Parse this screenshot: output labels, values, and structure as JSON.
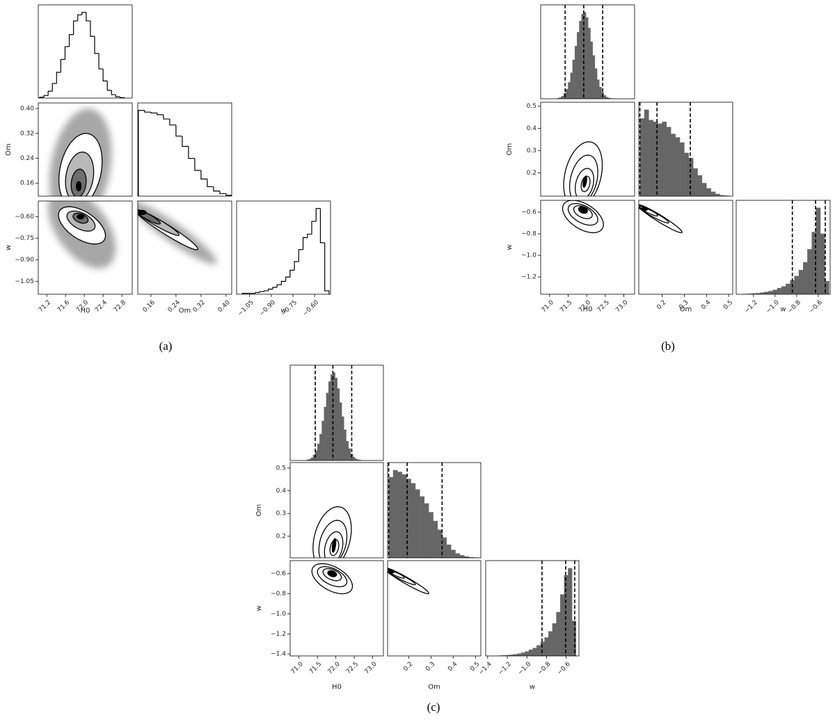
{
  "chart_data": [
    {
      "type": "corner",
      "caption": "(a)",
      "hist_style": "step",
      "hist_color": "#000000",
      "cloud_color": "#8a8a8a",
      "params": [
        {
          "label": "H0",
          "lim": [
            71.02,
            73.02
          ],
          "ticks": [
            71.2,
            71.6,
            {
              "value": 72,
              "label": "72.0"
            },
            72.4,
            72.8
          ]
        },
        {
          "label": "Om",
          "lim": [
            0.118,
            0.418
          ],
          "ticks": [
            0.16,
            0.24,
            0.32,
            {
              "value": 0.4,
              "label": "0.40"
            }
          ]
        },
        {
          "label": "w",
          "lim": [
            -1.14,
            -0.49
          ],
          "ticks": [
            {
              "value": -1.05,
              "label": "−1.05"
            },
            {
              "value": -0.9,
              "label": "−0.90"
            },
            {
              "value": -0.75,
              "label": "−0.75"
            },
            {
              "value": -0.6,
              "label": "−0.60"
            }
          ]
        }
      ],
      "histograms": [
        {
          "bins": [
            71.05,
            71.14,
            71.23,
            71.32,
            71.41,
            71.5,
            71.59,
            71.68,
            71.77,
            71.86,
            71.95,
            72.04,
            72.13,
            72.22,
            72.31,
            72.4,
            72.49,
            72.58,
            72.67,
            72.76,
            72.85
          ],
          "values": [
            1,
            3,
            8,
            17,
            30,
            45,
            60,
            74,
            90,
            97,
            100,
            90,
            72,
            52,
            34,
            20,
            9,
            4,
            1.5,
            0.5
          ]
        },
        {
          "bins": [
            0.12,
            0.14,
            0.16,
            0.18,
            0.2,
            0.22,
            0.24,
            0.26,
            0.28,
            0.3,
            0.32,
            0.34,
            0.36,
            0.38,
            0.4,
            0.42
          ],
          "values": [
            100,
            98,
            97,
            95,
            90,
            83,
            70,
            58,
            44,
            30,
            20,
            11,
            6,
            3,
            1
          ]
        },
        {
          "bins": [
            -1.1,
            -1.07,
            -1.04,
            -1.01,
            -0.98,
            -0.95,
            -0.92,
            -0.89,
            -0.86,
            -0.83,
            -0.8,
            -0.77,
            -0.74,
            -0.71,
            -0.68,
            -0.65,
            -0.62,
            -0.59,
            -0.56,
            -0.53,
            -0.5
          ],
          "values": [
            1,
            1,
            1,
            2,
            3,
            4,
            6,
            8,
            11,
            15,
            20,
            28,
            38,
            52,
            66,
            70,
            85,
            100,
            60,
            4
          ]
        }
      ],
      "clouds": [
        {
          "cx": 71.92,
          "cy": 0.21,
          "sx": 0.66,
          "sy": 0.19,
          "rho": 0.25
        },
        {
          "cx": 71.95,
          "cy": -0.68,
          "sx": 0.72,
          "sy": 0.28,
          "rho": -0.5
        },
        {
          "cx": 0.23,
          "cy": -0.71,
          "sx": 0.14,
          "sy": 0.22,
          "rho": -0.93
        }
      ],
      "contours": [
        [
          {
            "cx": 71.92,
            "cy": 0.2,
            "sx": 0.46,
            "sy": 0.12,
            "rho": 0.25,
            "fill": "#ffffff"
          },
          {
            "cx": 71.9,
            "cy": 0.18,
            "sx": 0.3,
            "sy": 0.08,
            "rho": 0.2,
            "fill": "#b8b8b8"
          },
          {
            "cx": 71.88,
            "cy": 0.16,
            "sx": 0.16,
            "sy": 0.045,
            "rho": 0.15,
            "fill": "#6e6e6e"
          },
          {
            "cx": 71.88,
            "cy": 0.15,
            "sx": 0.05,
            "sy": 0.015,
            "rho": 0,
            "fill": "#000000"
          }
        ],
        [
          {
            "cx": 71.95,
            "cy": -0.66,
            "sx": 0.5,
            "sy": 0.13,
            "rho": -0.55,
            "fill": "#ffffff"
          },
          {
            "cx": 71.93,
            "cy": -0.63,
            "sx": 0.3,
            "sy": 0.07,
            "rho": -0.5,
            "fill": "#b8b8b8"
          },
          {
            "cx": 71.92,
            "cy": -0.61,
            "sx": 0.16,
            "sy": 0.035,
            "rho": -0.4,
            "fill": "#6e6e6e"
          },
          {
            "cx": 71.92,
            "cy": -0.6,
            "sx": 0.07,
            "sy": 0.015,
            "rho": 0,
            "fill": "#000000"
          }
        ],
        [
          {
            "cx": 0.21,
            "cy": -0.69,
            "sx": 0.1,
            "sy": 0.14,
            "rho": -0.96,
            "fill": "#ffffff"
          },
          {
            "cx": 0.18,
            "cy": -0.64,
            "sx": 0.07,
            "sy": 0.09,
            "rho": -0.95,
            "fill": "#b8b8b8"
          },
          {
            "cx": 0.15,
            "cy": -0.6,
            "sx": 0.04,
            "sy": 0.05,
            "rho": -0.9,
            "fill": "#6e6e6e"
          },
          {
            "cx": 0.13,
            "cy": -0.57,
            "sx": 0.015,
            "sy": 0.015,
            "rho": 0,
            "fill": "#000000"
          }
        ]
      ]
    },
    {
      "type": "corner",
      "caption": "(b)",
      "hist_style": "filled",
      "hist_color": "#666666",
      "params": [
        {
          "label": "H0",
          "lim": [
            70.76,
            73.29
          ],
          "ticks": [
            {
              "value": 71,
              "label": "71.0"
            },
            71.5,
            {
              "value": 72,
              "label": "72.0"
            },
            72.5,
            {
              "value": 73,
              "label": "73.0"
            }
          ]
        },
        {
          "label": "Om",
          "lim": [
            0.095,
            0.518
          ],
          "ticks": [
            0.2,
            0.3,
            0.4,
            0.5
          ]
        },
        {
          "label": "w",
          "lim": [
            -1.36,
            -0.49
          ],
          "ticks": [
            {
              "value": -1.2,
              "label": "−1.2"
            },
            {
              "value": -1,
              "label": "−1.0"
            },
            {
              "value": -0.8,
              "label": "−0.8"
            },
            {
              "value": -0.6,
              "label": "−0.6"
            }
          ]
        }
      ],
      "histograms": [
        {
          "bins": [
            71.2,
            71.26,
            71.32,
            71.38,
            71.44,
            71.5,
            71.56,
            71.62,
            71.68,
            71.74,
            71.8,
            71.86,
            71.92,
            71.98,
            72.04,
            72.1,
            72.16,
            72.22,
            72.28,
            72.34,
            72.4,
            72.46,
            72.52,
            72.58,
            72.64,
            72.7
          ],
          "values": [
            0.6,
            1.5,
            3.1,
            6.2,
            11.2,
            19,
            30,
            45,
            61,
            77,
            90,
            98,
            100,
            94,
            82,
            66,
            50,
            35,
            22,
            13.5,
            7.6,
            3.9,
            1.9,
            0.8,
            0.4
          ]
        },
        {
          "bins": [
            0.1,
            0.12,
            0.14,
            0.16,
            0.18,
            0.2,
            0.22,
            0.24,
            0.26,
            0.28,
            0.3,
            0.32,
            0.34,
            0.36,
            0.38,
            0.4,
            0.42,
            0.44,
            0.46,
            0.48,
            0.5
          ],
          "values": [
            90,
            100,
            88,
            86,
            84,
            86,
            80,
            72,
            68,
            62,
            50,
            44,
            32,
            24,
            15,
            9,
            5,
            2.5,
            1,
            0.5
          ]
        },
        {
          "bins": [
            -1.3,
            -1.26,
            -1.22,
            -1.18,
            -1.14,
            -1.1,
            -1.06,
            -1.02,
            -0.98,
            -0.94,
            -0.9,
            -0.86,
            -0.82,
            -0.78,
            -0.74,
            -0.7,
            -0.66,
            -0.62,
            -0.58,
            -0.54,
            -0.5
          ],
          "values": [
            0.3,
            0.5,
            0.8,
            1.2,
            1.8,
            2.6,
            3.6,
            5,
            7,
            9,
            12,
            16,
            21,
            28,
            37,
            52,
            72,
            100,
            70,
            15
          ]
        }
      ],
      "quantiles": [
        [
          71.42,
          71.92,
          72.43
        ],
        [
          0.1,
          0.177,
          0.327
        ],
        [
          -0.84,
          -0.625,
          -0.535
        ]
      ],
      "contours": [
        [
          {
            "cx": 71.9,
            "cy": 0.19,
            "sx": 0.52,
            "sy": 0.15,
            "rho": 0.3,
            "fill": "none"
          },
          {
            "cx": 71.92,
            "cy": 0.17,
            "sx": 0.38,
            "sy": 0.11,
            "rho": 0.3,
            "fill": "none"
          },
          {
            "cx": 71.94,
            "cy": 0.15,
            "sx": 0.25,
            "sy": 0.07,
            "rho": 0.3,
            "fill": "none"
          },
          {
            "cx": 71.97,
            "cy": 0.15,
            "sx": 0.12,
            "sy": 0.035,
            "rho": 0.3,
            "fill": "none"
          },
          {
            "cx": 71.95,
            "cy": 0.16,
            "sx": 0.05,
            "sy": 0.025,
            "rho": 0.5,
            "fill": "#000000"
          }
        ],
        [
          {
            "cx": 71.9,
            "cy": -0.64,
            "sx": 0.55,
            "sy": 0.15,
            "rho": -0.5,
            "fill": "none"
          },
          {
            "cx": 71.9,
            "cy": -0.62,
            "sx": 0.4,
            "sy": 0.1,
            "rho": -0.5,
            "fill": "none"
          },
          {
            "cx": 71.9,
            "cy": -0.6,
            "sx": 0.25,
            "sy": 0.06,
            "rho": -0.45,
            "fill": "none"
          },
          {
            "cx": 71.9,
            "cy": -0.58,
            "sx": 0.12,
            "sy": 0.03,
            "rho": -0.3,
            "fill": "#000000"
          }
        ],
        [
          {
            "cx": 0.19,
            "cy": -0.66,
            "sx": 0.1,
            "sy": 0.13,
            "rho": -0.96,
            "fill": "none"
          },
          {
            "cx": 0.16,
            "cy": -0.62,
            "sx": 0.07,
            "sy": 0.08,
            "rho": -0.95,
            "fill": "none"
          },
          {
            "cx": 0.14,
            "cy": -0.59,
            "sx": 0.04,
            "sy": 0.045,
            "rho": -0.9,
            "fill": "none"
          },
          {
            "cx": 0.12,
            "cy": -0.57,
            "sx": 0.015,
            "sy": 0.015,
            "rho": 0,
            "fill": "#000000"
          }
        ]
      ]
    },
    {
      "type": "corner",
      "caption": "(c)",
      "hist_style": "filled",
      "hist_color": "#666666",
      "params": [
        {
          "label": "H0",
          "lim": [
            70.76,
            73.29
          ],
          "ticks": [
            {
              "value": 71,
              "label": "71.0"
            },
            71.5,
            {
              "value": 72,
              "label": "72.0"
            },
            72.5,
            {
              "value": 73,
              "label": "73.0"
            }
          ]
        },
        {
          "label": "Om",
          "lim": [
            0.105,
            0.524
          ],
          "ticks": [
            0.2,
            0.3,
            0.4,
            0.5
          ]
        },
        {
          "label": "w",
          "lim": [
            -1.42,
            -0.47
          ],
          "ticks": [
            {
              "value": -1.4,
              "label": "−1.4"
            },
            {
              "value": -1.2,
              "label": "−1.2"
            },
            {
              "value": -1,
              "label": "−1.0"
            },
            {
              "value": -0.8,
              "label": "−0.8"
            },
            {
              "value": -0.6,
              "label": "−0.6"
            }
          ]
        }
      ],
      "histograms": [
        {
          "bins": [
            71.2,
            71.26,
            71.32,
            71.38,
            71.44,
            71.5,
            71.56,
            71.62,
            71.68,
            71.74,
            71.8,
            71.86,
            71.92,
            71.98,
            72.04,
            72.1,
            72.16,
            72.22,
            72.28,
            72.34,
            72.4,
            72.46,
            72.52,
            72.58,
            72.64,
            72.7
          ],
          "values": [
            0.6,
            1.5,
            3.1,
            6.2,
            11.2,
            19,
            30,
            45,
            61,
            77,
            90,
            98,
            100,
            94,
            82,
            66,
            50,
            35,
            22,
            13.5,
            7.6,
            3.9,
            1.9,
            0.8,
            0.4
          ]
        },
        {
          "bins": [
            0.11,
            0.13,
            0.15,
            0.17,
            0.19,
            0.21,
            0.23,
            0.25,
            0.27,
            0.29,
            0.31,
            0.33,
            0.35,
            0.37,
            0.39,
            0.41,
            0.43,
            0.45,
            0.47,
            0.49,
            0.51
          ],
          "values": [
            92,
            100,
            98,
            95,
            90,
            85,
            78,
            70,
            62,
            52,
            42,
            32,
            23,
            15,
            9,
            5,
            3,
            1.5,
            0.7,
            0.3
          ]
        },
        {
          "bins": [
            -1.3,
            -1.26,
            -1.22,
            -1.18,
            -1.14,
            -1.1,
            -1.06,
            -1.02,
            -0.98,
            -0.94,
            -0.9,
            -0.86,
            -0.82,
            -0.78,
            -0.74,
            -0.7,
            -0.66,
            -0.62,
            -0.58,
            -0.54,
            -0.5
          ],
          "values": [
            0.3,
            0.5,
            0.8,
            1.2,
            1.8,
            2.6,
            3.6,
            5,
            7,
            9,
            12,
            16,
            21,
            28,
            37,
            50,
            70,
            92,
            100,
            40
          ]
        }
      ],
      "quantiles": [
        [
          71.44,
          71.92,
          72.43
        ],
        [
          0.11,
          0.193,
          0.35
        ],
        [
          -0.846,
          -0.605,
          -0.513
        ]
      ],
      "contours": [
        [
          {
            "cx": 71.9,
            "cy": 0.19,
            "sx": 0.52,
            "sy": 0.14,
            "rho": 0.3,
            "fill": "none"
          },
          {
            "cx": 71.92,
            "cy": 0.17,
            "sx": 0.38,
            "sy": 0.1,
            "rho": 0.3,
            "fill": "none"
          },
          {
            "cx": 71.94,
            "cy": 0.15,
            "sx": 0.25,
            "sy": 0.07,
            "rho": 0.3,
            "fill": "none"
          },
          {
            "cx": 71.96,
            "cy": 0.15,
            "sx": 0.12,
            "sy": 0.035,
            "rho": 0.3,
            "fill": "none"
          },
          {
            "cx": 71.95,
            "cy": 0.16,
            "sx": 0.05,
            "sy": 0.03,
            "rho": 0.5,
            "fill": "#000000"
          }
        ],
        [
          {
            "cx": 71.9,
            "cy": -0.65,
            "sx": 0.55,
            "sy": 0.15,
            "rho": -0.5,
            "fill": "none"
          },
          {
            "cx": 71.9,
            "cy": -0.63,
            "sx": 0.4,
            "sy": 0.1,
            "rho": -0.5,
            "fill": "none"
          },
          {
            "cx": 71.9,
            "cy": -0.61,
            "sx": 0.25,
            "sy": 0.06,
            "rho": -0.45,
            "fill": "none"
          },
          {
            "cx": 71.9,
            "cy": -0.6,
            "sx": 0.12,
            "sy": 0.03,
            "rho": -0.3,
            "fill": "#000000"
          }
        ],
        [
          {
            "cx": 0.19,
            "cy": -0.67,
            "sx": 0.1,
            "sy": 0.13,
            "rho": -0.96,
            "fill": "none"
          },
          {
            "cx": 0.16,
            "cy": -0.63,
            "sx": 0.07,
            "sy": 0.08,
            "rho": -0.95,
            "fill": "none"
          },
          {
            "cx": 0.14,
            "cy": -0.6,
            "sx": 0.04,
            "sy": 0.045,
            "rho": -0.9,
            "fill": "none"
          },
          {
            "cx": 0.12,
            "cy": -0.58,
            "sx": 0.015,
            "sy": 0.015,
            "rho": 0,
            "fill": "#000000"
          }
        ]
      ]
    }
  ]
}
